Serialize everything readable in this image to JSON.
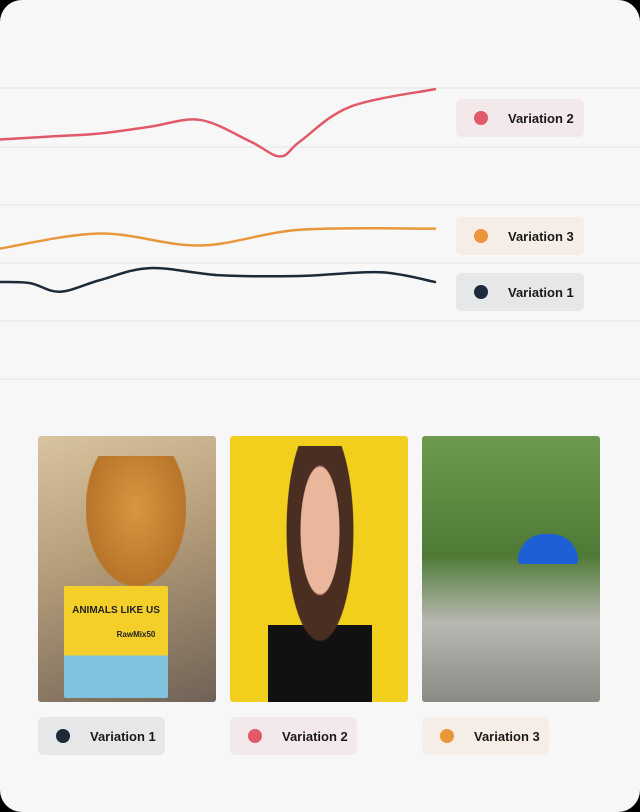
{
  "chart_data": {
    "type": "line",
    "title": "",
    "xlabel": "",
    "ylabel": "",
    "xlim": [
      0,
      100
    ],
    "ylim": [
      0,
      100
    ],
    "grid": true,
    "legend_placement": "right",
    "series": [
      {
        "name": "Variation 2",
        "color": "#e05a6a",
        "x": [
          0,
          11.5,
          23,
          34.5,
          46,
          57.5,
          64.4,
          69,
          80.5,
          100
        ],
        "y": [
          63.7,
          64.5,
          65.3,
          67.1,
          68.9,
          63.2,
          59.2,
          63.2,
          72.4,
          77.1
        ]
      },
      {
        "name": "Variation 3",
        "color": "#e8973a",
        "x": [
          0,
          23,
          46,
          69,
          100
        ],
        "y": [
          34.7,
          38.7,
          35.5,
          39.7,
          40.0
        ]
      },
      {
        "name": "Variation 1",
        "color": "#1c2b3a",
        "x": [
          0,
          6.9,
          13.8,
          23,
          34.5,
          50.6,
          69,
          87.4,
          100
        ],
        "y": [
          25.8,
          25.5,
          23.2,
          26.3,
          29.5,
          27.6,
          27.4,
          28.4,
          25.8
        ]
      }
    ]
  },
  "legend": [
    {
      "label": "Variation 2",
      "color": "#e05a6a",
      "bg": "#f3e8ea"
    },
    {
      "label": "Variation 3",
      "color": "#e8973a",
      "bg": "#f6eee6"
    },
    {
      "label": "Variation 1",
      "color": "#1c2b3a",
      "bg": "#e6e7e8"
    }
  ],
  "gallery": [
    {
      "label": "Variation 1",
      "color": "#1c2b3a",
      "bg": "#e6e7e8",
      "package_brand": "ANIMALS LIKE US",
      "package_product": "RawMix50"
    },
    {
      "label": "Variation 2",
      "color": "#e05a6a",
      "bg": "#f3e8ea"
    },
    {
      "label": "Variation 3",
      "color": "#e8973a",
      "bg": "#f6eee6"
    }
  ]
}
